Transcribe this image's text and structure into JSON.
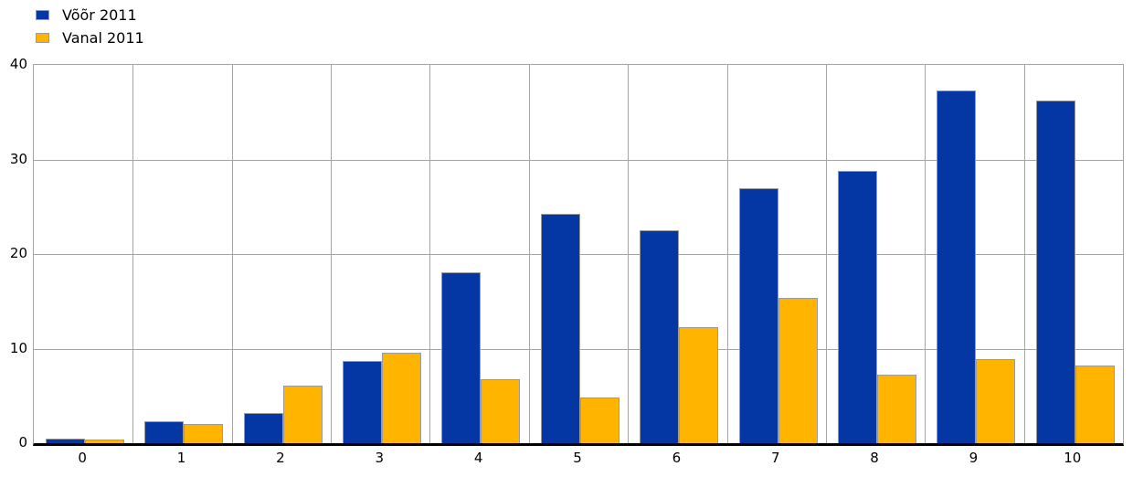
{
  "chart_data": {
    "type": "bar",
    "title": "",
    "xlabel": "",
    "ylabel": "",
    "categories": [
      "0",
      "1",
      "2",
      "3",
      "4",
      "5",
      "6",
      "7",
      "8",
      "9",
      "10"
    ],
    "series": [
      {
        "name": "Võõr 2011",
        "color": "#0437a3",
        "values": [
          0.5,
          2.3,
          3.2,
          8.7,
          18.1,
          24.3,
          22.5,
          27.0,
          28.8,
          37.3,
          36.2
        ]
      },
      {
        "name": "Vanal 2011",
        "color": "#ffb400",
        "values": [
          0.4,
          2.0,
          6.1,
          9.6,
          6.8,
          4.8,
          12.3,
          15.4,
          7.2,
          8.9,
          8.2
        ]
      }
    ],
    "ylim": [
      0,
      40
    ],
    "yticks": [
      0,
      10,
      20,
      30,
      40
    ],
    "grid": true,
    "legend_position": "top-left",
    "colors": {
      "grid": "#a5a5a5",
      "axis": "#000000",
      "bar_border": "#9b9b9b",
      "text": "#000000",
      "background": "#ffffff"
    }
  }
}
